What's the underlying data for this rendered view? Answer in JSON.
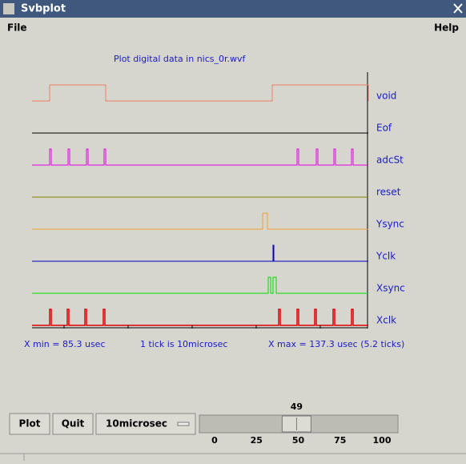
{
  "window": {
    "title": "Svbplot"
  },
  "menu": {
    "left": "File",
    "right": "Help"
  },
  "plot": {
    "title": "Plot digital data in nics_0r.wvf",
    "signals": [
      "void",
      "Eof",
      "adcSt",
      "reset",
      "Ysync",
      "Yclk",
      "Xsync",
      "Xclk"
    ],
    "footer": {
      "xmin": "X min = 85.3 usec",
      "tick": "1 tick is 10microsec",
      "xmax": "X max = 137.3 usec (5.2 ticks)"
    }
  },
  "controls": {
    "buttons": [
      "Plot",
      "Quit"
    ],
    "dropdown": "10microsec",
    "slider": {
      "value": 49,
      "ticks": [
        0,
        25,
        50,
        75,
        100
      ]
    }
  }
}
